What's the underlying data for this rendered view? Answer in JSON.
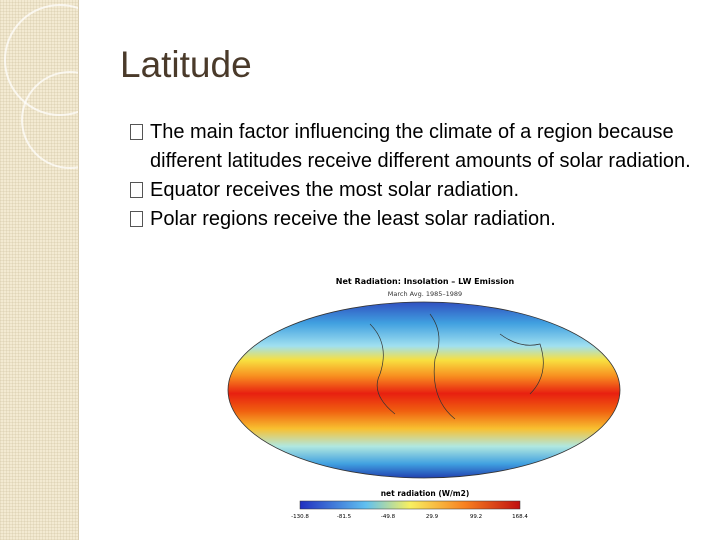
{
  "slide": {
    "title": "Latitude",
    "bullets": [
      "The main factor influencing the climate of a region because different latitudes receive different amounts of solar radiation.",
      "Equator receives the most solar radiation.",
      "Polar regions receive the least solar radiation."
    ],
    "figure": {
      "title": "Net Radiation: Insolation – LW Emission",
      "subtitle": "March Avg. 1985–1989",
      "colorbar_label": "net radiation (W/m2)",
      "colorbar_ticks": [
        "-130.8",
        "-81.5",
        "-49.8",
        "29.9",
        "99.2",
        "168.4"
      ]
    }
  }
}
